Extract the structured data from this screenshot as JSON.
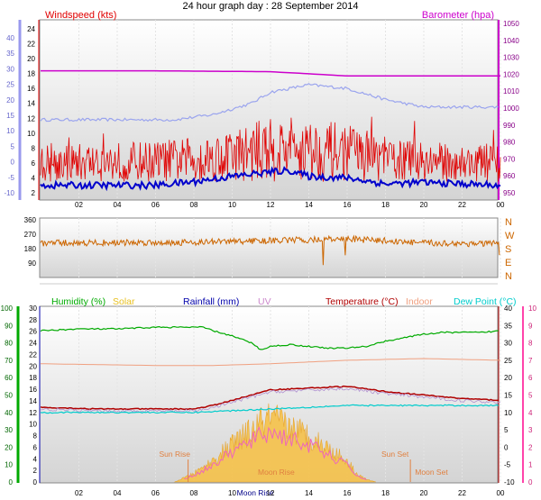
{
  "title": "24 hour graph day : 28 September 2014",
  "colors": {
    "wind": "#e00000",
    "gust_line": "#e00000",
    "avg_wind": "#0000cc",
    "baro": "#cc00cc",
    "temp_axis_blue": "#9999ee",
    "dir": "#cc6600",
    "humidity": "#00aa00",
    "solar": "#e8c020",
    "rain": "#0000aa",
    "uv": "#cc88cc",
    "temp": "#b00000",
    "indoor": "#f0a080",
    "dew": "#00cccc",
    "right_pink": "#ff44aa",
    "sun_text": "#e08040"
  },
  "chart_data": [
    {
      "type": "line",
      "panel": "wind-baro",
      "legend_left": "Windspeed (kts)",
      "legend_right": "Barometer (hpa)",
      "x_ticks": [
        "02",
        "04",
        "06",
        "08",
        "10",
        "12",
        "14",
        "16",
        "18",
        "20",
        "22",
        "00"
      ],
      "y_left_ticks": [
        "2",
        "4",
        "6",
        "8",
        "10",
        "12",
        "14",
        "16",
        "18",
        "20",
        "22",
        "24"
      ],
      "y_left_outer_ticks": [
        "-10",
        "-5",
        "0",
        "5",
        "10",
        "15",
        "20",
        "25",
        "30",
        "35",
        "40"
      ],
      "y_right_ticks": [
        "950",
        "960",
        "970",
        "980",
        "990",
        "1000",
        "1010",
        "1020",
        "1030",
        "1040",
        "1050"
      ],
      "barometer_hpa": {
        "x": [
          0,
          6,
          12,
          16,
          20,
          24
        ],
        "y": [
          1022,
          1022,
          1021.5,
          1019,
          1019,
          1019
        ]
      },
      "windspeed_kts": {
        "note_range": [
          2,
          13
        ]
      }
    },
    {
      "type": "line",
      "panel": "direction",
      "y_ticks": [
        "360",
        "270",
        "180",
        "90"
      ],
      "compass_labels": [
        "N",
        "W",
        "S",
        "E",
        "N"
      ]
    },
    {
      "type": "line",
      "panel": "temp-humidity",
      "legends": [
        "Humidity (%)",
        "Solar",
        "Rainfall (mm)",
        "UV",
        "Temperature (°C)",
        "Indoor",
        "Dew Point (°C)"
      ],
      "y_hum_ticks": [
        "0",
        "10",
        "20",
        "30",
        "40",
        "50",
        "60",
        "70",
        "80",
        "90",
        "100"
      ],
      "y_rain_ticks": [
        "0",
        "2",
        "4",
        "6",
        "8",
        "10",
        "12",
        "14",
        "16",
        "18",
        "20",
        "22",
        "24",
        "26",
        "28",
        "30"
      ],
      "y_temp_ticks": [
        "-10",
        "-5",
        "0",
        "5",
        "10",
        "15",
        "20",
        "25",
        "30",
        "35",
        "40"
      ],
      "y_uv_ticks": [
        "0",
        "1",
        "2",
        "3",
        "4",
        "5",
        "6",
        "7",
        "8",
        "9",
        "10"
      ],
      "x_ticks": [
        "02",
        "04",
        "06",
        "08",
        "10",
        "12",
        "14",
        "16",
        "18",
        "20",
        "22",
        "00"
      ],
      "annotations": [
        "Sun Rise",
        "Moon Rise",
        "Sun Set",
        "Moon Set",
        "Moon Rise"
      ],
      "humidity_pct": {
        "x": [
          0,
          2,
          4,
          6,
          8.5,
          9,
          10,
          11,
          11.5,
          12,
          13,
          14,
          15,
          16,
          17,
          18,
          19,
          20,
          21,
          22,
          23,
          24
        ],
        "y": [
          87,
          88,
          88,
          89,
          89,
          87,
          84,
          80,
          76,
          78,
          79,
          78,
          77,
          77,
          78,
          81,
          83,
          85,
          86,
          86,
          86,
          87
        ]
      },
      "temperature_c": {
        "x": [
          0,
          3,
          6,
          8,
          9,
          10,
          11,
          12,
          14,
          16,
          18,
          20,
          22,
          24
        ],
        "y": [
          11.5,
          11,
          11,
          11,
          12,
          13.5,
          15,
          16.5,
          17,
          17.5,
          16,
          15,
          14,
          13.5
        ]
      },
      "dew_point_c": {
        "x": [
          0,
          6,
          8,
          10,
          12,
          14,
          16,
          18,
          20,
          22,
          24
        ],
        "y": [
          10,
          10,
          10,
          10.5,
          11,
          11.5,
          12,
          12,
          12,
          12,
          12
        ]
      },
      "indoor_c": {
        "x": [
          0,
          6,
          9,
          12,
          16,
          20,
          24
        ],
        "y": [
          24,
          23.5,
          23.5,
          24,
          25,
          25.5,
          25
        ]
      }
    }
  ]
}
